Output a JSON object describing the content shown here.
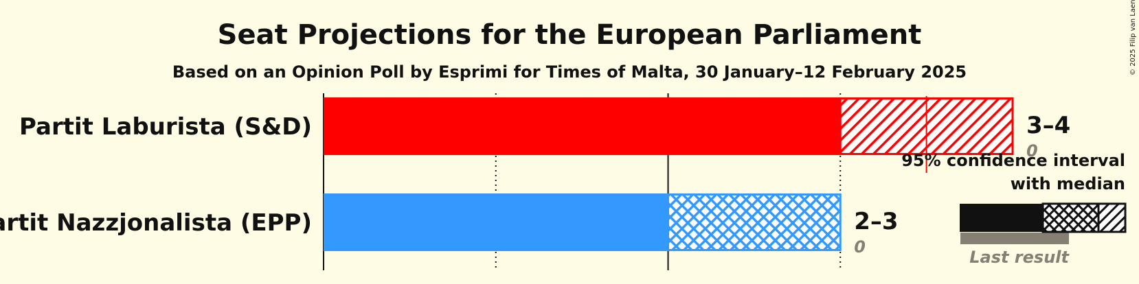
{
  "title": "Seat Projections for the European Parliament",
  "subtitle": "Based on an Opinion Poll by Esprimi for Times of Malta, 30 January–12 February 2025",
  "copyright": "© 2025 Filip van Laenen",
  "legend": {
    "ci_label_line1": "95% confidence interval",
    "ci_label_line2": "with median",
    "last_result_label": "Last result"
  },
  "chart_data": {
    "type": "bar",
    "orientation": "horizontal",
    "title": "Seat Projections for the European Parliament",
    "subtitle": "Based on an Opinion Poll by Esprimi for Times of Malta, 30 January–12 February 2025",
    "xlim": [
      0,
      4
    ],
    "gridlines": [
      1,
      2,
      3
    ],
    "series": [
      {
        "name": "Partit Laburista (S&D)",
        "color": "#FF0000",
        "ci_low": 3,
        "ci_high": 4,
        "median": 3.5,
        "last_result": 0,
        "range_label": "3–4",
        "last_result_label": "0",
        "hatch": "diagonal"
      },
      {
        "name": "Partit Nazzjonalista (EPP)",
        "color": "#3399FF",
        "ci_low": 2,
        "ci_high": 3,
        "median": 3,
        "last_result": 0,
        "range_label": "2–3",
        "last_result_label": "0",
        "hatch": "crosshatch"
      }
    ]
  }
}
